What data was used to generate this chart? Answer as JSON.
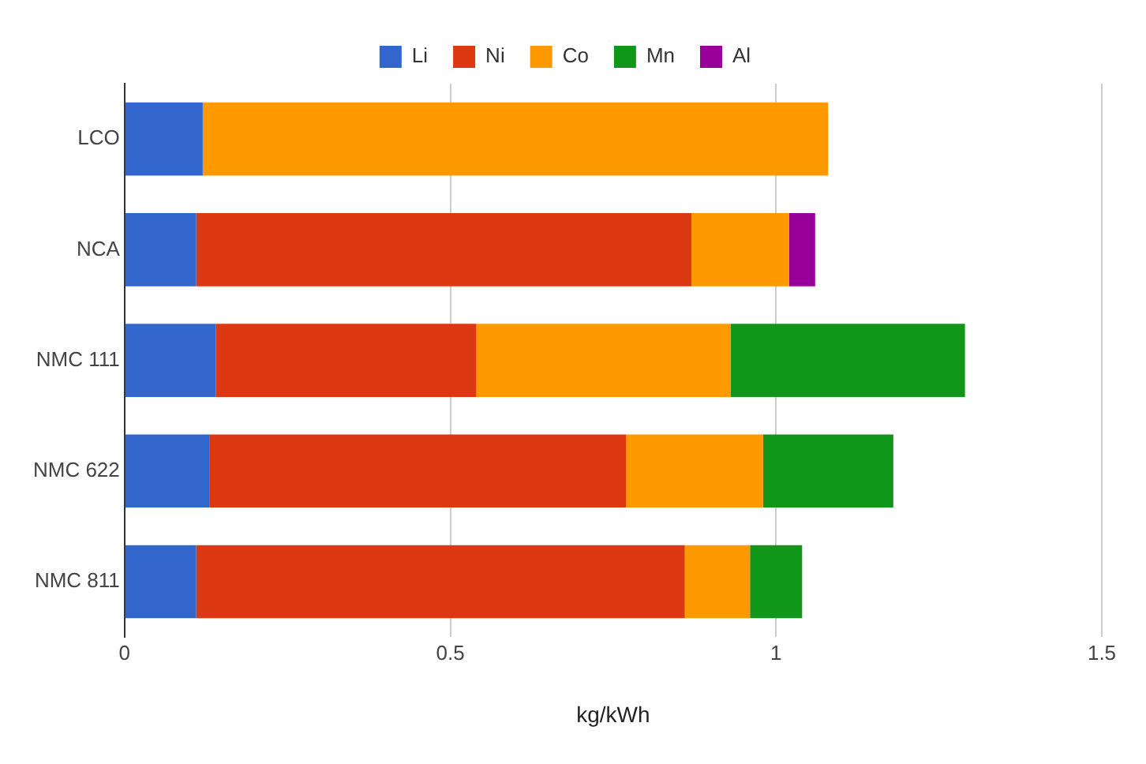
{
  "chart_data": {
    "type": "bar",
    "orientation": "horizontal",
    "stacked": true,
    "xlabel": "kg/kWh",
    "categories": [
      "LCO",
      "NCA",
      "NMC 111",
      "NMC 622",
      "NMC 811"
    ],
    "series": [
      {
        "name": "Li",
        "color": "#3366cc",
        "values": [
          0.12,
          0.11,
          0.14,
          0.13,
          0.11
        ]
      },
      {
        "name": "Ni",
        "color": "#dc3912",
        "values": [
          null,
          0.76,
          0.4,
          0.64,
          0.75
        ]
      },
      {
        "name": "Co",
        "color": "#ff9900",
        "values": [
          0.96,
          0.15,
          0.39,
          0.21,
          0.1
        ]
      },
      {
        "name": "Mn",
        "color": "#109618",
        "values": [
          null,
          null,
          0.36,
          0.2,
          0.08
        ]
      },
      {
        "name": "Al",
        "color": "#990099",
        "values": [
          null,
          0.04,
          null,
          null,
          null
        ]
      }
    ],
    "xlim": [
      0,
      1.5
    ],
    "xticks": [
      0,
      0.5,
      1,
      1.5
    ],
    "grid": "x",
    "legend": "top"
  }
}
